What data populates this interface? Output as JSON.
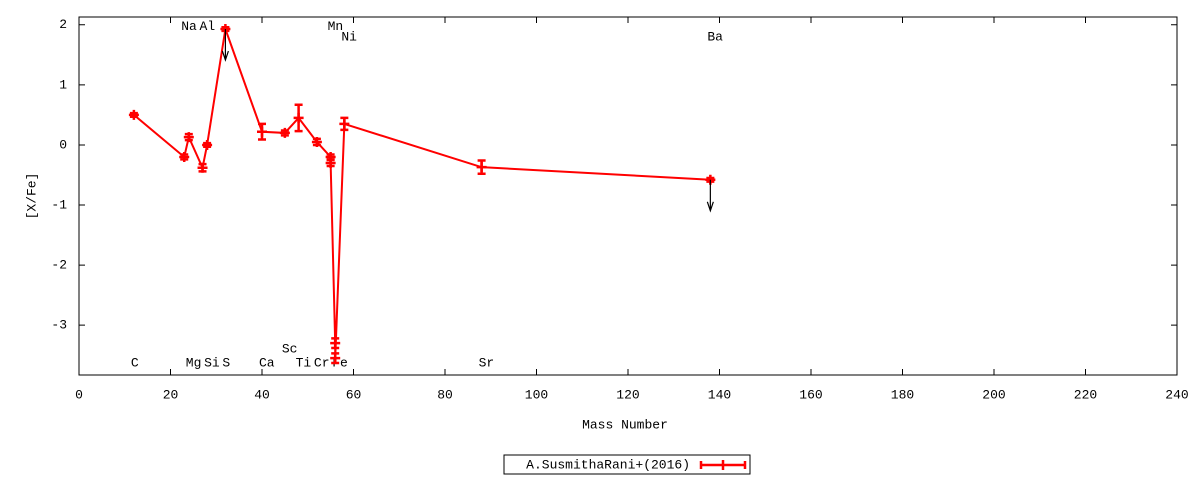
{
  "chart_data": {
    "type": "errorbar-line",
    "xlabel": "Mass Number",
    "ylabel": "[X/Fe]",
    "x": [
      12,
      23,
      24,
      27,
      28,
      32,
      40,
      45,
      48,
      52,
      55,
      55,
      56,
      56,
      58,
      88,
      138
    ],
    "series": [
      {
        "name": "A.SusmithaRani+(2016)",
        "color": "#ff0000",
        "values": [
          0.5,
          -0.2,
          0.13,
          -0.38,
          0.0,
          1.93,
          0.22,
          0.2,
          0.45,
          0.05,
          -0.2,
          -0.3,
          -3.3,
          -3.55,
          0.35,
          -0.37,
          -0.58
        ],
        "errors": [
          0.03,
          0.04,
          0.05,
          0.06,
          0.03,
          0.03,
          0.13,
          0.04,
          0.22,
          0.05,
          0.04,
          0.05,
          0.08,
          0.08,
          0.1,
          0.11,
          0.03
        ],
        "upper_limits": [
          false,
          false,
          false,
          false,
          false,
          true,
          false,
          false,
          false,
          false,
          false,
          false,
          false,
          false,
          false,
          false,
          true
        ]
      }
    ],
    "annotations": [
      {
        "text": "C",
        "x": 12,
        "y": -3.63
      },
      {
        "text": "Na",
        "x": 23,
        "y": 1.97
      },
      {
        "text": "Mg",
        "x": 24,
        "y": -3.63
      },
      {
        "text": "Al",
        "x": 27,
        "y": 1.97
      },
      {
        "text": "Si",
        "x": 28,
        "y": -3.63
      },
      {
        "text": "S",
        "x": 32,
        "y": -3.63
      },
      {
        "text": "Ca",
        "x": 40,
        "y": -3.63
      },
      {
        "text": "Sc",
        "x": 45,
        "y": -3.4
      },
      {
        "text": "Ti",
        "x": 48,
        "y": -3.63
      },
      {
        "text": "Cr",
        "x": 52,
        "y": -3.63
      },
      {
        "text": "Mn",
        "x": 55,
        "y": 1.97
      },
      {
        "text": "Fe",
        "x": 56,
        "y": -3.63
      },
      {
        "text": "Ni",
        "x": 58,
        "y": 1.8
      },
      {
        "text": "Sr",
        "x": 88,
        "y": -3.63
      },
      {
        "text": "Ba",
        "x": 138,
        "y": 1.8
      }
    ],
    "xlim": [
      0,
      240
    ],
    "xticks": [
      0,
      20,
      40,
      60,
      80,
      100,
      120,
      140,
      160,
      180,
      200,
      220,
      240
    ],
    "ylim": [
      -3.83,
      2.13
    ],
    "yticks": [
      -3,
      -2,
      -1,
      0,
      1,
      2
    ],
    "grid": false
  }
}
